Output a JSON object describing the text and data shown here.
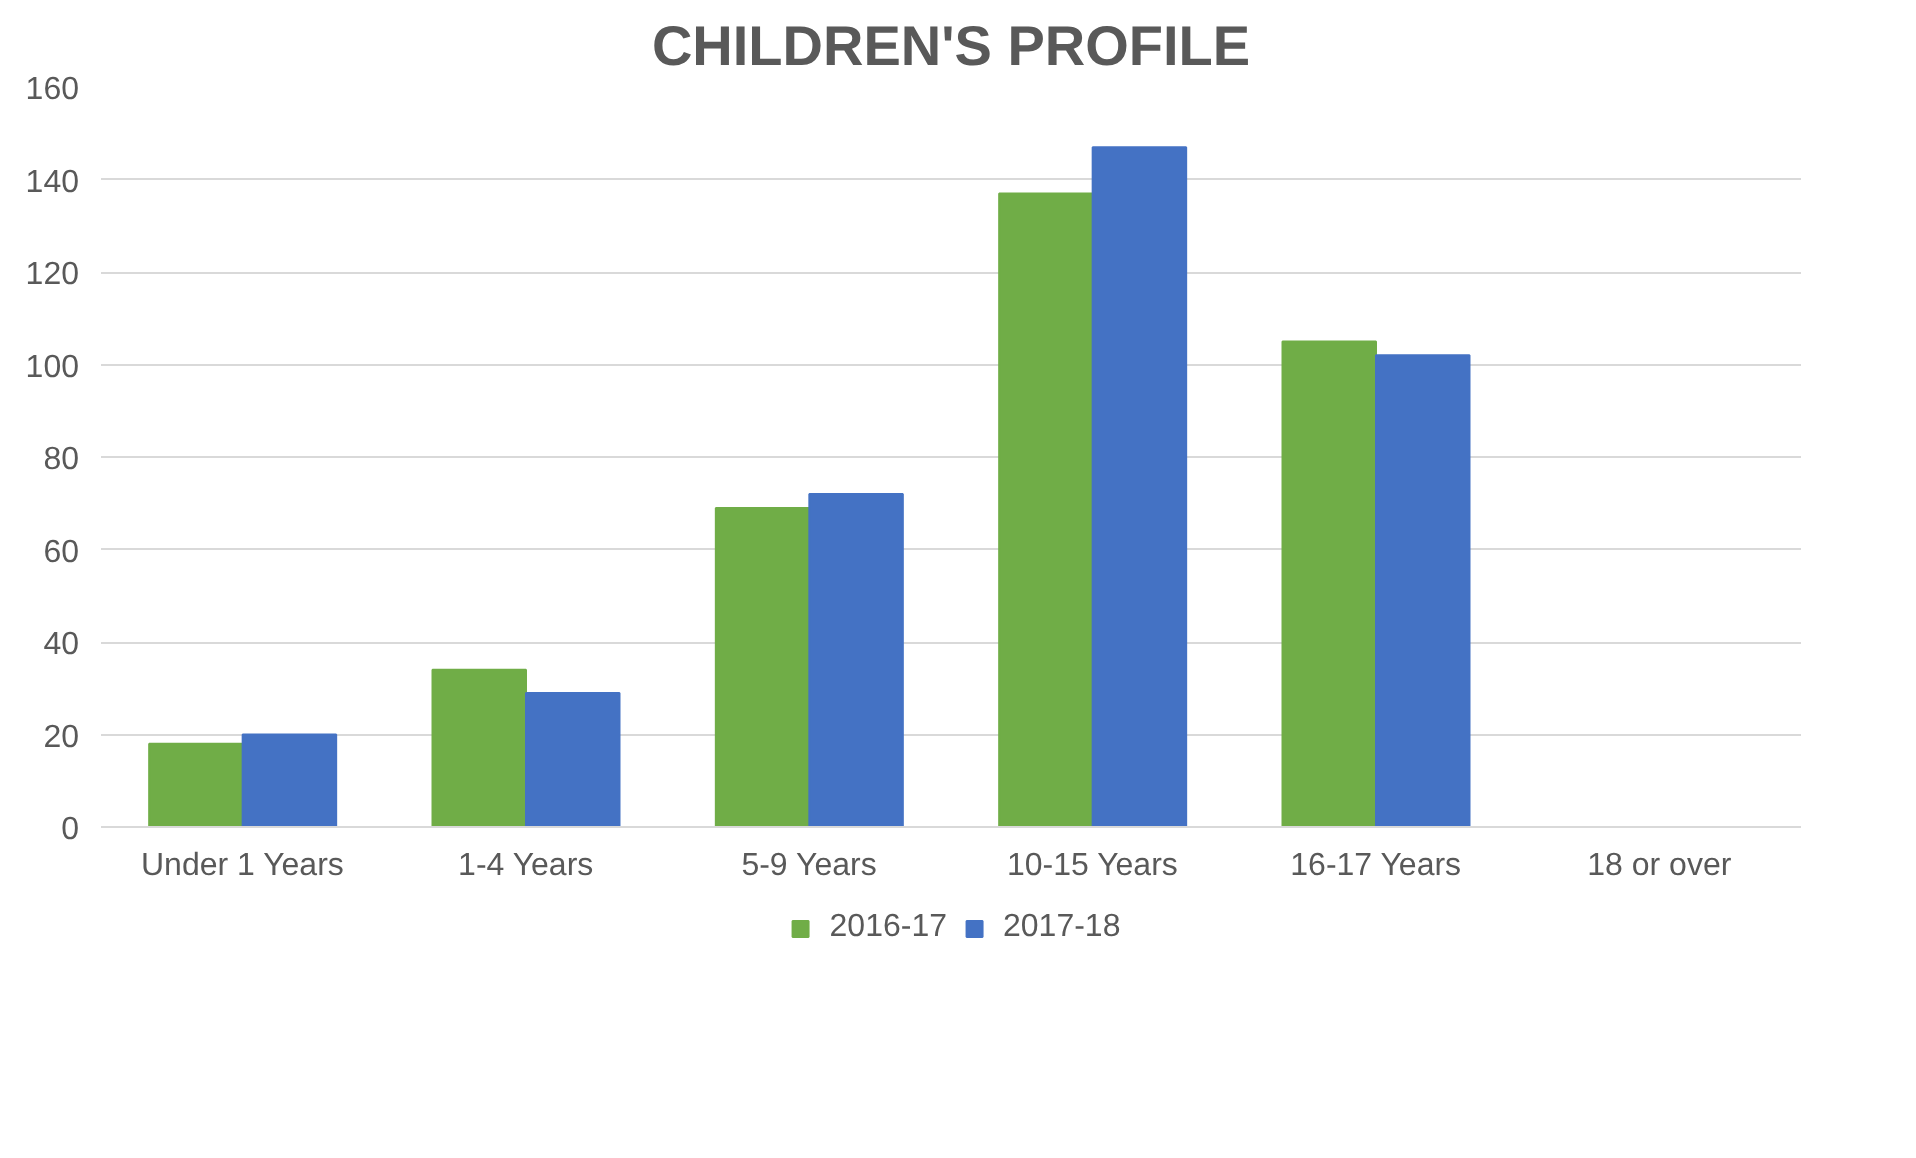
{
  "chart_data": {
    "type": "bar",
    "title": "CHILDREN'S PROFILE",
    "categories": [
      "Under 1 Years",
      "1-4 Years",
      "5-9 Years",
      "10-15 Years",
      "16-17 Years",
      "18 or over"
    ],
    "series": [
      {
        "name": "2016-17",
        "color": "#70ad47",
        "values": [
          18,
          34,
          69,
          137,
          105,
          0
        ]
      },
      {
        "name": "2017-18",
        "color": "#4472c4",
        "values": [
          20,
          29,
          72,
          147,
          102,
          0
        ]
      }
    ],
    "ylim": [
      0,
      160
    ],
    "yticks": [
      0,
      20,
      40,
      60,
      80,
      100,
      120,
      140,
      160
    ],
    "grid": "y",
    "legend": "bottom"
  }
}
